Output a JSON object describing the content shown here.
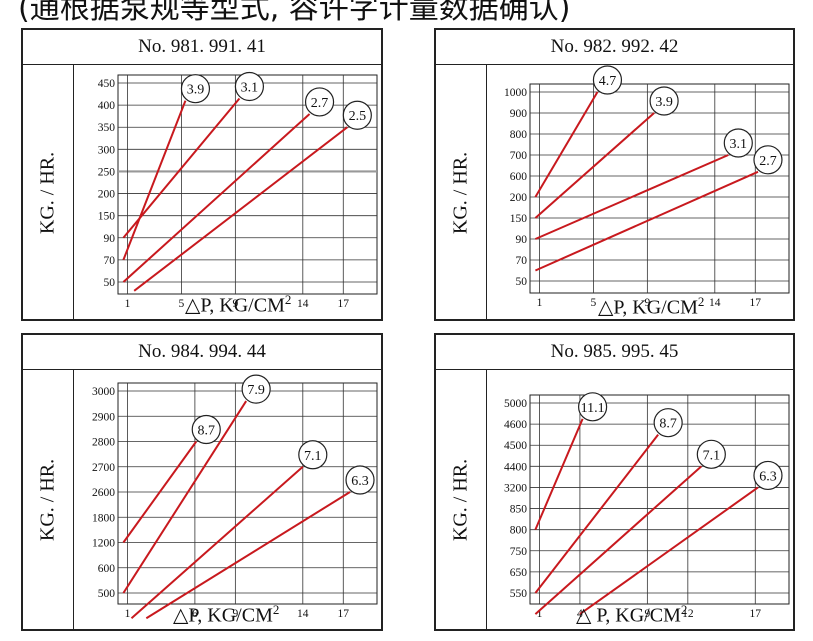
{
  "header": {
    "text": "(通根据泵规等型式, 容许字计量数据确认)"
  },
  "chart_data": [
    {
      "type": "line",
      "title": "No. 981. 991. 41",
      "ylabel": "KG. / HR.",
      "xlabel": "△P,  KG/CM",
      "xlabel_sup": "2",
      "y_ticks": [
        50,
        70,
        90,
        150,
        200,
        250,
        300,
        350,
        400,
        450
      ],
      "x_ticks": [
        1,
        5,
        9,
        14,
        17
      ],
      "highlight_tick": 250,
      "series": [
        {
          "label": "3.9",
          "points": [
            [
              0.7,
              70
            ],
            [
              5.3,
              410
            ]
          ]
        },
        {
          "label": "3.1",
          "points": [
            [
              0.7,
              90
            ],
            [
              9.3,
              415
            ]
          ]
        },
        {
          "label": "2.7",
          "points": [
            [
              0.7,
              50
            ],
            [
              14.5,
              380
            ]
          ]
        },
        {
          "label": "2.5",
          "points": [
            [
              1.5,
              42
            ],
            [
              17.3,
              350
            ]
          ]
        }
      ],
      "line_color": "#c8191e"
    },
    {
      "type": "line",
      "title": "No. 982. 992. 42",
      "ylabel": "KG. / HR.",
      "xlabel": "△P,  KG/CM",
      "xlabel_sup": "2",
      "y_ticks": [
        50,
        70,
        90,
        150,
        200,
        600,
        700,
        800,
        900,
        1000
      ],
      "x_ticks": [
        1,
        5,
        9,
        14,
        17
      ],
      "series": [
        {
          "label": "4.7",
          "points": [
            [
              0.7,
              200
            ],
            [
              5.3,
              1000
            ]
          ]
        },
        {
          "label": "3.9",
          "points": [
            [
              0.7,
              150
            ],
            [
              9.5,
              900
            ]
          ]
        },
        {
          "label": "3.1",
          "points": [
            [
              0.7,
              90
            ],
            [
              15.0,
              700
            ]
          ]
        },
        {
          "label": "2.7",
          "points": [
            [
              0.7,
              60
            ],
            [
              17.2,
              620
            ]
          ]
        }
      ],
      "line_color": "#c8191e"
    },
    {
      "type": "line",
      "title": "No. 984. 994. 44",
      "ylabel": "KG. / HR.",
      "xlabel": "△P,  KG/CM",
      "xlabel_sup": "2",
      "y_ticks": [
        500,
        600,
        1200,
        1800,
        2600,
        2700,
        2800,
        2900,
        3000
      ],
      "x_ticks": [
        1,
        6,
        9,
        14,
        17
      ],
      "series": [
        {
          "label": "8.7",
          "points": [
            [
              0.7,
              1200
            ],
            [
              6.1,
              2800
            ]
          ]
        },
        {
          "label": "7.9",
          "points": [
            [
              0.7,
              500
            ],
            [
              9.8,
              2960
            ]
          ]
        },
        {
          "label": "7.1",
          "points": [
            [
              1.3,
              400
            ],
            [
              14.0,
              2700
            ]
          ]
        },
        {
          "label": "6.3",
          "points": [
            [
              2.4,
              400
            ],
            [
              17.5,
              2600
            ]
          ]
        }
      ],
      "line_color": "#c8191e"
    },
    {
      "type": "line",
      "title": "No. 985. 995. 45",
      "ylabel": "KG. / HR.",
      "xlabel": "△   P,  KG/CM",
      "xlabel_sup": "2",
      "y_ticks": [
        550,
        650,
        750,
        800,
        850,
        3200,
        4400,
        4500,
        4600,
        5000
      ],
      "x_ticks": [
        1,
        4,
        9,
        12,
        17
      ],
      "series": [
        {
          "label": "11.1",
          "points": [
            [
              0.7,
              800
            ],
            [
              4.2,
              4700
            ]
          ]
        },
        {
          "label": "8.7",
          "points": [
            [
              0.7,
              550
            ],
            [
              9.8,
              4550
            ]
          ]
        },
        {
          "label": "7.1",
          "points": [
            [
              0.7,
              450
            ],
            [
              13.0,
              4400
            ]
          ]
        },
        {
          "label": "6.3",
          "points": [
            [
              4.0,
              450
            ],
            [
              17.2,
              3200
            ]
          ]
        }
      ],
      "line_color": "#c8191e"
    }
  ]
}
